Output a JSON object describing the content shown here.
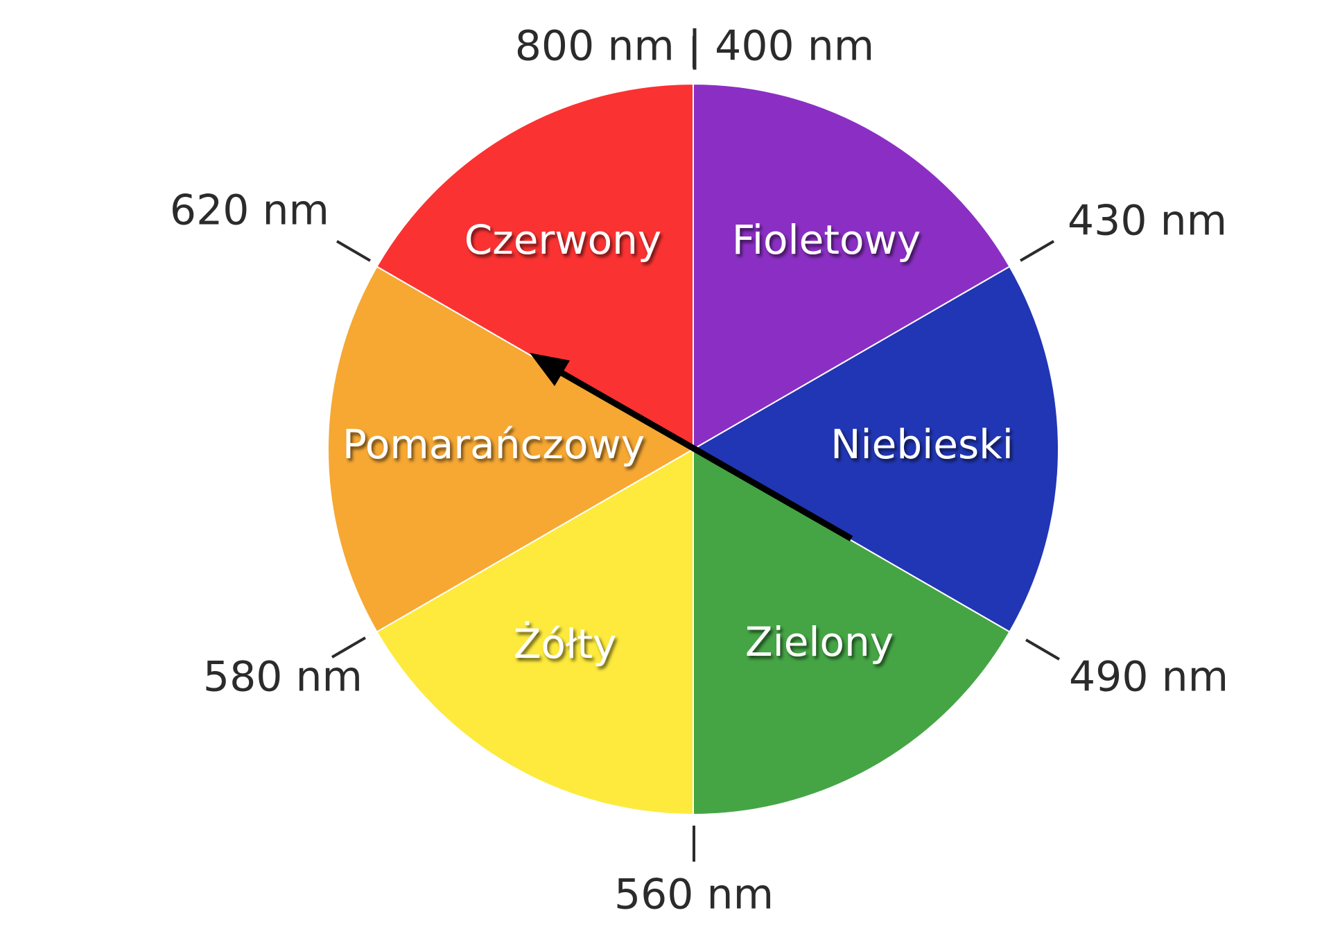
{
  "diagram": {
    "segments": [
      {
        "label": "Fioletowy",
        "color": "#8b2fc4"
      },
      {
        "label": "Niebieski",
        "color": "#2136b4"
      },
      {
        "label": "Zielony",
        "color": "#45a545"
      },
      {
        "label": "Żółty",
        "color": "#fdea3d"
      },
      {
        "label": "Pomarańczowy",
        "color": "#f6a833"
      },
      {
        "label": "Czerwony",
        "color": "#fb3232"
      }
    ],
    "boundary_labels": {
      "top": "800 nm | 400 nm",
      "upper_right": "430 nm",
      "lower_right": "490 nm",
      "bottom": "560 nm",
      "lower_left": "580 nm",
      "upper_left": "620 nm"
    },
    "arrow": {
      "from_segment": "Zielony",
      "to_segment": "Czerwony",
      "color": "#000000"
    }
  }
}
